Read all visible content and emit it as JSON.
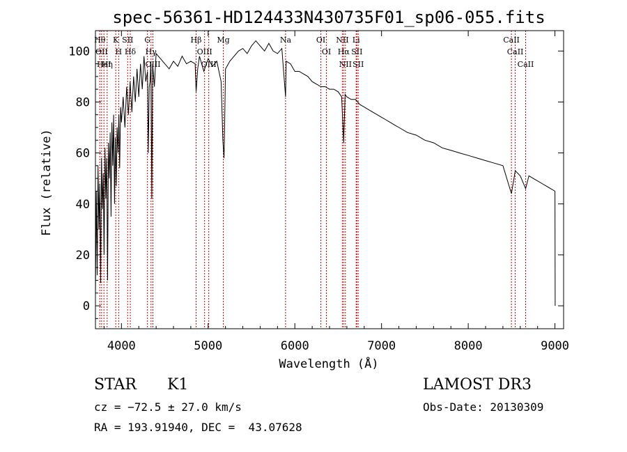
{
  "chart_data": {
    "type": "line",
    "title": "spec-56361-HD124433N430735F01_sp06-055.fits",
    "xlabel": "Wavelength (Å)",
    "ylabel": "Flux (relative)",
    "xlim": [
      3700,
      9100
    ],
    "ylim": [
      -9,
      108
    ],
    "xticks": [
      4000,
      5000,
      6000,
      7000,
      8000,
      9000
    ],
    "yticks": [
      0,
      20,
      40,
      60,
      80,
      100
    ],
    "series": [
      {
        "name": "flux",
        "x": [
          3700,
          3710,
          3720,
          3730,
          3740,
          3750,
          3760,
          3770,
          3780,
          3790,
          3800,
          3810,
          3820,
          3830,
          3840,
          3850,
          3860,
          3870,
          3880,
          3890,
          3900,
          3910,
          3920,
          3930,
          3940,
          3950,
          3960,
          3970,
          3980,
          3990,
          4000,
          4020,
          4040,
          4060,
          4080,
          4100,
          4120,
          4140,
          4160,
          4180,
          4200,
          4220,
          4240,
          4260,
          4280,
          4300,
          4310,
          4320,
          4330,
          4340,
          4350,
          4360,
          4380,
          4400,
          4450,
          4500,
          4550,
          4600,
          4650,
          4700,
          4750,
          4800,
          4850,
          4861,
          4880,
          4900,
          4950,
          5000,
          5050,
          5100,
          5150,
          5170,
          5183,
          5190,
          5200,
          5250,
          5300,
          5350,
          5400,
          5450,
          5500,
          5550,
          5600,
          5650,
          5700,
          5750,
          5800,
          5850,
          5893,
          5900,
          5950,
          6000,
          6050,
          6100,
          6150,
          6200,
          6250,
          6300,
          6350,
          6400,
          6450,
          6500,
          6540,
          6563,
          6580,
          6600,
          6650,
          6700,
          6750,
          6800,
          6850,
          6900,
          6950,
          7000,
          7050,
          7100,
          7150,
          7200,
          7300,
          7400,
          7500,
          7600,
          7700,
          7800,
          7900,
          8000,
          8100,
          8200,
          8300,
          8400,
          8498,
          8542,
          8600,
          8662,
          8700,
          8750,
          8800,
          8850,
          8900,
          8950,
          9000,
          9001,
          9003
        ],
        "y": [
          4,
          45,
          12,
          55,
          30,
          48,
          9,
          58,
          38,
          52,
          20,
          62,
          42,
          58,
          10,
          64,
          50,
          68,
          35,
          72,
          55,
          75,
          40,
          66,
          47,
          70,
          60,
          75,
          54,
          78,
          72,
          82,
          70,
          86,
          75,
          88,
          76,
          90,
          80,
          93,
          82,
          95,
          85,
          98,
          88,
          92,
          60,
          86,
          88,
          96,
          42,
          95,
          86,
          99,
          97,
          95,
          93,
          96,
          94,
          98,
          95,
          96,
          95,
          84,
          93,
          98,
          92,
          97,
          94,
          96,
          88,
          65,
          58,
          70,
          93,
          96,
          98,
          100,
          101,
          99,
          102,
          104,
          102,
          100,
          103,
          100,
          99,
          101,
          82,
          96,
          95,
          92,
          92,
          91,
          90,
          88,
          87,
          86,
          86,
          85,
          85,
          84,
          82,
          64,
          83,
          82,
          81,
          81,
          79,
          78,
          77,
          76,
          75,
          74,
          73,
          72,
          71,
          70,
          68,
          67,
          65,
          64,
          62,
          61,
          60,
          59,
          58,
          57,
          56,
          55,
          44,
          53,
          51,
          46,
          51,
          50,
          49,
          48,
          47,
          46,
          45,
          30,
          0
        ]
      }
    ],
    "annotations": [
      {
        "wavelength": 3750,
        "label": "Hθ"
      },
      {
        "wavelength": 3771,
        "label": "OII"
      },
      {
        "wavelength": 3798,
        "label": "HeI"
      },
      {
        "wavelength": 3835,
        "label": "Hη"
      },
      {
        "wavelength": 3934,
        "label": "K"
      },
      {
        "wavelength": 3968,
        "label": "H"
      },
      {
        "wavelength": 4072,
        "label": "SII"
      },
      {
        "wavelength": 4102,
        "label": "Hδ"
      },
      {
        "wavelength": 4300,
        "label": "G"
      },
      {
        "wavelength": 4341,
        "label": "Hγ"
      },
      {
        "wavelength": 4363,
        "label": "OIII"
      },
      {
        "wavelength": 4861,
        "label": "Hβ"
      },
      {
        "wavelength": 4959,
        "label": "OIII"
      },
      {
        "wavelength": 5007,
        "label": "OIII"
      },
      {
        "wavelength": 5175,
        "label": "Mg"
      },
      {
        "wavelength": 5893,
        "label": "Na"
      },
      {
        "wavelength": 6300,
        "label": "OI"
      },
      {
        "wavelength": 6364,
        "label": "OI"
      },
      {
        "wavelength": 6548,
        "label": "NII"
      },
      {
        "wavelength": 6563,
        "label": "Hα"
      },
      {
        "wavelength": 6583,
        "label": "NII"
      },
      {
        "wavelength": 6707,
        "label": "Li"
      },
      {
        "wavelength": 6716,
        "label": "SII"
      },
      {
        "wavelength": 6731,
        "label": "SII"
      },
      {
        "wavelength": 8498,
        "label": "CaII"
      },
      {
        "wavelength": 8542,
        "label": "CaII"
      },
      {
        "wavelength": 8662,
        "label": "CaII"
      }
    ]
  },
  "info": {
    "class_label": "STAR",
    "subclass": "K1",
    "survey": "LAMOST DR3",
    "cz": "cz = −72.5 ± 27.0 km/s",
    "obs_date": "Obs-Date: 20130309",
    "coords": "RA = 193.91940, DEC =  43.07628"
  },
  "colors": {
    "line": "#000000",
    "marker": "#cc0000",
    "axis": "#000000"
  }
}
